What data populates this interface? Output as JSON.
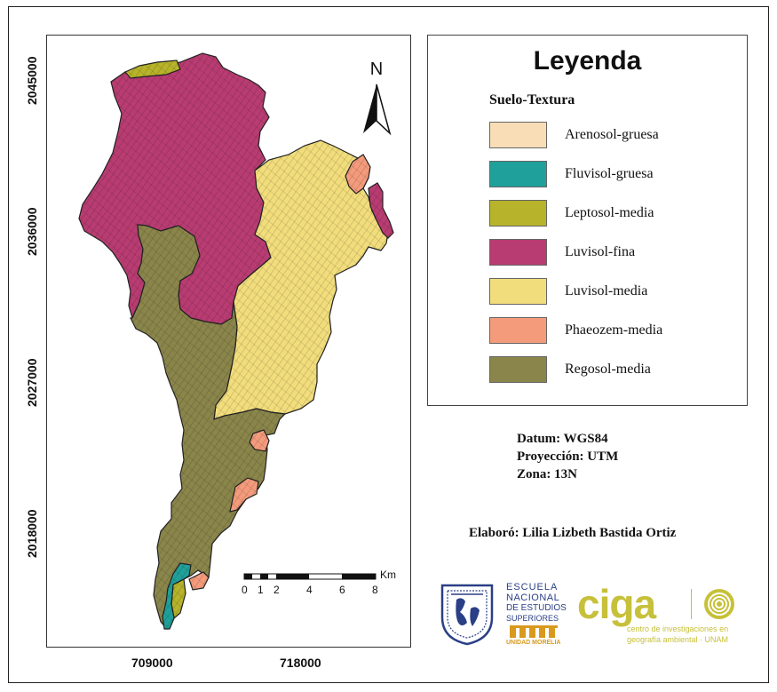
{
  "map": {
    "y_ticks": [
      "2045000",
      "2036000",
      "2027000",
      "2018000"
    ],
    "x_ticks": [
      "709000",
      "718000"
    ],
    "north_label": "N",
    "scale_bar": {
      "labels": [
        "0",
        "1",
        "2",
        "4",
        "6",
        "8"
      ],
      "unit": "Km"
    }
  },
  "legend": {
    "title": "Leyenda",
    "subtitle": "Suelo-Textura",
    "items": [
      {
        "label": "Arenosol-gruesa",
        "color": "#f9ddb7"
      },
      {
        "label": "Fluvisol-gruesa",
        "color": "#20a09a"
      },
      {
        "label": "Leptosol-media",
        "color": "#b7b32a"
      },
      {
        "label": "Luvisol-fina",
        "color": "#b83c72"
      },
      {
        "label": "Luvisol-media",
        "color": "#f2dd7c"
      },
      {
        "label": "Phaeozem-media",
        "color": "#f49b7c"
      },
      {
        "label": "Regosol-media",
        "color": "#8a854a"
      }
    ]
  },
  "info": {
    "datum": "Datum: WGS84",
    "projection": "Proyección: UTM",
    "zone": "Zona: 13N"
  },
  "author": "Elaboró: Lilia Lizbeth Bastida Ortiz",
  "logos": {
    "enes": {
      "line1": "ESCUELA",
      "line2": "NACIONAL",
      "line3": "DE ESTUDIOS",
      "line4": "SUPERIORES",
      "line5": "UNIDAD MORELIA"
    },
    "ciga": {
      "name": "ciga",
      "line1": "centro de investigaciones en",
      "line2": "geografía ambiental · UNAM"
    }
  }
}
